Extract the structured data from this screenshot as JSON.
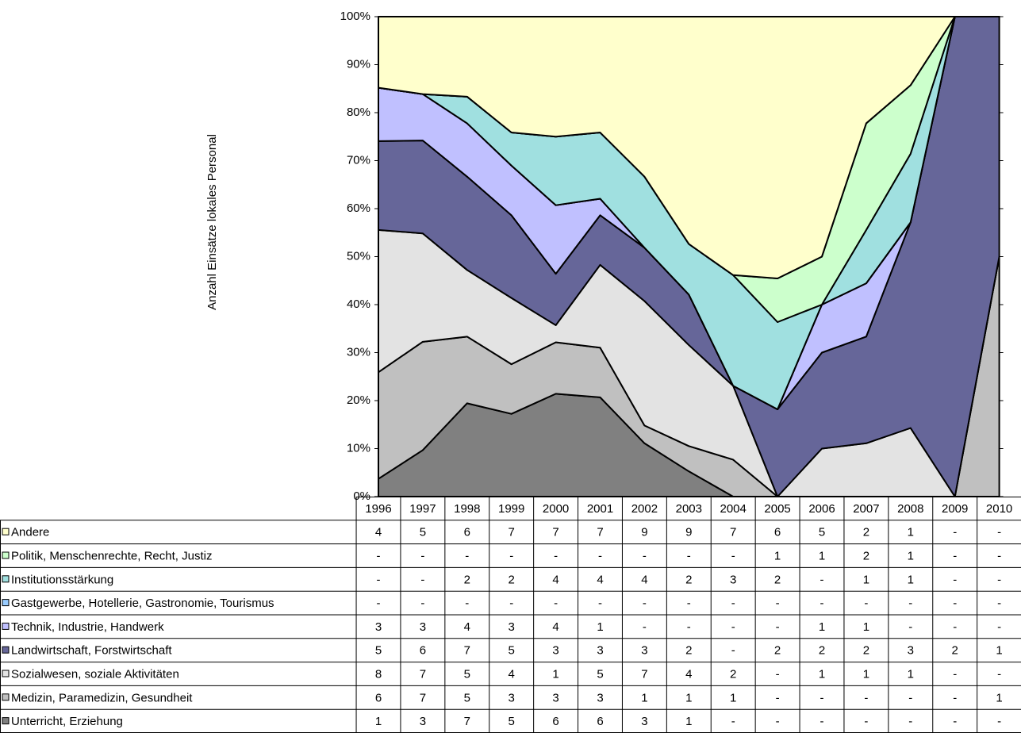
{
  "chart_data": {
    "type": "area_percent_stacked",
    "y_label": "Anzahl Einsätze lokales Personal",
    "categories": [
      "1996",
      "1997",
      "1998",
      "1999",
      "2000",
      "2001",
      "2002",
      "2003",
      "2004",
      "2005",
      "2006",
      "2007",
      "2008",
      "2009",
      "2010"
    ],
    "ylim": [
      0,
      100
    ],
    "yticks": [
      {
        "value": 0,
        "label": "0%"
      },
      {
        "value": 10,
        "label": "10%"
      },
      {
        "value": 20,
        "label": "20%"
      },
      {
        "value": 30,
        "label": "30%"
      },
      {
        "value": 40,
        "label": "40%"
      },
      {
        "value": 50,
        "label": "50%"
      },
      {
        "value": 60,
        "label": "60%"
      },
      {
        "value": 70,
        "label": "70%"
      },
      {
        "value": 80,
        "label": "80%"
      },
      {
        "value": 90,
        "label": "90%"
      },
      {
        "value": 100,
        "label": "100%"
      }
    ],
    "series": [
      {
        "name": "Andere",
        "color": "#ffffcc",
        "values": [
          4,
          5,
          6,
          7,
          7,
          7,
          9,
          9,
          7,
          6,
          5,
          2,
          1,
          0,
          0
        ],
        "value_labels": [
          "4",
          "5",
          "6",
          "7",
          "7",
          "7",
          "9",
          "9",
          "7",
          "6",
          "5",
          "2",
          "1",
          "-",
          "-"
        ]
      },
      {
        "name": "Politik, Menschenrechte, Recht, Justiz",
        "color": "#ccffcc",
        "values": [
          0,
          0,
          0,
          0,
          0,
          0,
          0,
          0,
          0,
          1,
          1,
          2,
          1,
          0,
          0
        ],
        "value_labels": [
          "-",
          "-",
          "-",
          "-",
          "-",
          "-",
          "-",
          "-",
          "-",
          "1",
          "1",
          "2",
          "1",
          "-",
          "-"
        ]
      },
      {
        "name": "Institutionsstärkung",
        "color": "#a0e0e0",
        "values": [
          0,
          0,
          2,
          2,
          4,
          4,
          4,
          2,
          3,
          2,
          0,
          1,
          1,
          0,
          0
        ],
        "value_labels": [
          "-",
          "-",
          "2",
          "2",
          "4",
          "4",
          "4",
          "2",
          "3",
          "2",
          "-",
          "1",
          "1",
          "-",
          "-"
        ]
      },
      {
        "name": "Gastgewerbe, Hotellerie, Gastronomie, Tourismus",
        "color": "#99ccff",
        "values": [
          0,
          0,
          0,
          0,
          0,
          0,
          0,
          0,
          0,
          0,
          0,
          0,
          0,
          0,
          0
        ],
        "value_labels": [
          "-",
          "-",
          "-",
          "-",
          "-",
          "-",
          "-",
          "-",
          "-",
          "-",
          "-",
          "-",
          "-",
          "-",
          "-"
        ]
      },
      {
        "name": "Technik, Industrie, Handwerk",
        "color": "#c0c0ff",
        "values": [
          3,
          3,
          4,
          3,
          4,
          1,
          0,
          0,
          0,
          0,
          1,
          1,
          0,
          0,
          0
        ],
        "value_labels": [
          "3",
          "3",
          "4",
          "3",
          "4",
          "1",
          "-",
          "-",
          "-",
          "-",
          "1",
          "1",
          "-",
          "-",
          "-"
        ]
      },
      {
        "name": "Landwirtschaft, Forstwirtschaft",
        "color": "#666699",
        "values": [
          5,
          6,
          7,
          5,
          3,
          3,
          3,
          2,
          0,
          2,
          2,
          2,
          3,
          2,
          1
        ],
        "value_labels": [
          "5",
          "6",
          "7",
          "5",
          "3",
          "3",
          "3",
          "2",
          "-",
          "2",
          "2",
          "2",
          "3",
          "2",
          "1"
        ]
      },
      {
        "name": "Sozialwesen, soziale Aktivitäten",
        "color": "#e3e3e3",
        "values": [
          8,
          7,
          5,
          4,
          1,
          5,
          7,
          4,
          2,
          0,
          1,
          1,
          1,
          0,
          0
        ],
        "value_labels": [
          "8",
          "7",
          "5",
          "4",
          "1",
          "5",
          "7",
          "4",
          "2",
          "-",
          "1",
          "1",
          "1",
          "-",
          "-"
        ]
      },
      {
        "name": "Medizin, Paramedizin, Gesundheit",
        "color": "#c0c0c0",
        "values": [
          6,
          7,
          5,
          3,
          3,
          3,
          1,
          1,
          1,
          0,
          0,
          0,
          0,
          0,
          1
        ],
        "value_labels": [
          "6",
          "7",
          "5",
          "3",
          "3",
          "3",
          "1",
          "1",
          "1",
          "-",
          "-",
          "-",
          "-",
          "-",
          "1"
        ]
      },
      {
        "name": "Unterricht, Erziehung",
        "color": "#808080",
        "values": [
          1,
          3,
          7,
          5,
          6,
          6,
          3,
          1,
          0,
          0,
          0,
          0,
          0,
          0,
          0
        ],
        "value_labels": [
          "1",
          "3",
          "7",
          "5",
          "6",
          "6",
          "3",
          "1",
          "-",
          "-",
          "-",
          "-",
          "-",
          "-",
          "-"
        ]
      }
    ]
  }
}
